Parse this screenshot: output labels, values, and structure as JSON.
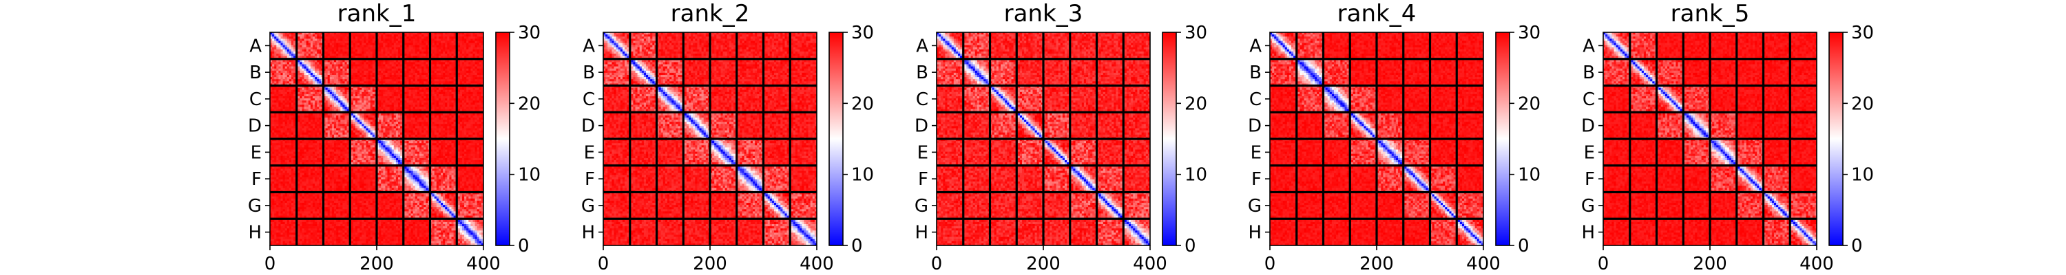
{
  "chart_data": [
    {
      "type": "heatmap",
      "title": "rank_1",
      "seed": 11,
      "xlim": [
        0,
        400
      ],
      "x_ticks": [
        "0",
        "200",
        "400"
      ],
      "y_categories": [
        "A",
        "B",
        "C",
        "D",
        "E",
        "F",
        "G",
        "H"
      ],
      "block_size": 50,
      "colorbar_range": [
        0,
        30
      ],
      "colorbar_ticks": [
        "0",
        "10",
        "20",
        "30"
      ],
      "colormap": [
        "#0000ff",
        "#ffffff",
        "#ff0000"
      ],
      "cell_value_ranges": {
        "diagonal": [
          0,
          30
        ],
        "near_diagonal": [
          22,
          30
        ],
        "off_diagonal": [
          28,
          30
        ]
      }
    },
    {
      "type": "heatmap",
      "title": "rank_2",
      "seed": 23,
      "xlim": [
        0,
        400
      ],
      "x_ticks": [
        "0",
        "200",
        "400"
      ],
      "y_categories": [
        "A",
        "B",
        "C",
        "D",
        "E",
        "F",
        "G",
        "H"
      ],
      "block_size": 50,
      "colorbar_range": [
        0,
        30
      ],
      "colorbar_ticks": [
        "0",
        "10",
        "20",
        "30"
      ],
      "colormap": [
        "#0000ff",
        "#ffffff",
        "#ff0000"
      ],
      "cell_value_ranges": {
        "diagonal": [
          0,
          30
        ],
        "near_diagonal": [
          22,
          30
        ],
        "off_diagonal": [
          27,
          30
        ]
      }
    },
    {
      "type": "heatmap",
      "title": "rank_3",
      "seed": 37,
      "xlim": [
        0,
        400
      ],
      "x_ticks": [
        "0",
        "200",
        "400"
      ],
      "y_categories": [
        "A",
        "B",
        "C",
        "D",
        "E",
        "F",
        "G",
        "H"
      ],
      "block_size": 50,
      "colorbar_range": [
        0,
        30
      ],
      "colorbar_ticks": [
        "0",
        "10",
        "20",
        "30"
      ],
      "colormap": [
        "#0000ff",
        "#ffffff",
        "#ff0000"
      ],
      "cell_value_ranges": {
        "diagonal": [
          0,
          30
        ],
        "near_diagonal": [
          22,
          30
        ],
        "off_diagonal": [
          26,
          30
        ]
      }
    },
    {
      "type": "heatmap",
      "title": "rank_4",
      "seed": 41,
      "xlim": [
        0,
        400
      ],
      "x_ticks": [
        "0",
        "200",
        "400"
      ],
      "y_categories": [
        "A",
        "B",
        "C",
        "D",
        "E",
        "F",
        "G",
        "H"
      ],
      "block_size": 50,
      "colorbar_range": [
        0,
        30
      ],
      "colorbar_ticks": [
        "0",
        "10",
        "20",
        "30"
      ],
      "colormap": [
        "#0000ff",
        "#ffffff",
        "#ff0000"
      ],
      "cell_value_ranges": {
        "diagonal": [
          0,
          30
        ],
        "near_diagonal": [
          23,
          30
        ],
        "off_diagonal": [
          28,
          30
        ]
      }
    },
    {
      "type": "heatmap",
      "title": "rank_5",
      "seed": 53,
      "xlim": [
        0,
        400
      ],
      "x_ticks": [
        "0",
        "200",
        "400"
      ],
      "y_categories": [
        "A",
        "B",
        "C",
        "D",
        "E",
        "F",
        "G",
        "H"
      ],
      "block_size": 50,
      "colorbar_range": [
        0,
        30
      ],
      "colorbar_ticks": [
        "0",
        "10",
        "20",
        "30"
      ],
      "colormap": [
        "#0000ff",
        "#ffffff",
        "#ff0000"
      ],
      "cell_value_ranges": {
        "diagonal": [
          0,
          30
        ],
        "near_diagonal": [
          23,
          30
        ],
        "off_diagonal": [
          28,
          30
        ]
      }
    }
  ]
}
